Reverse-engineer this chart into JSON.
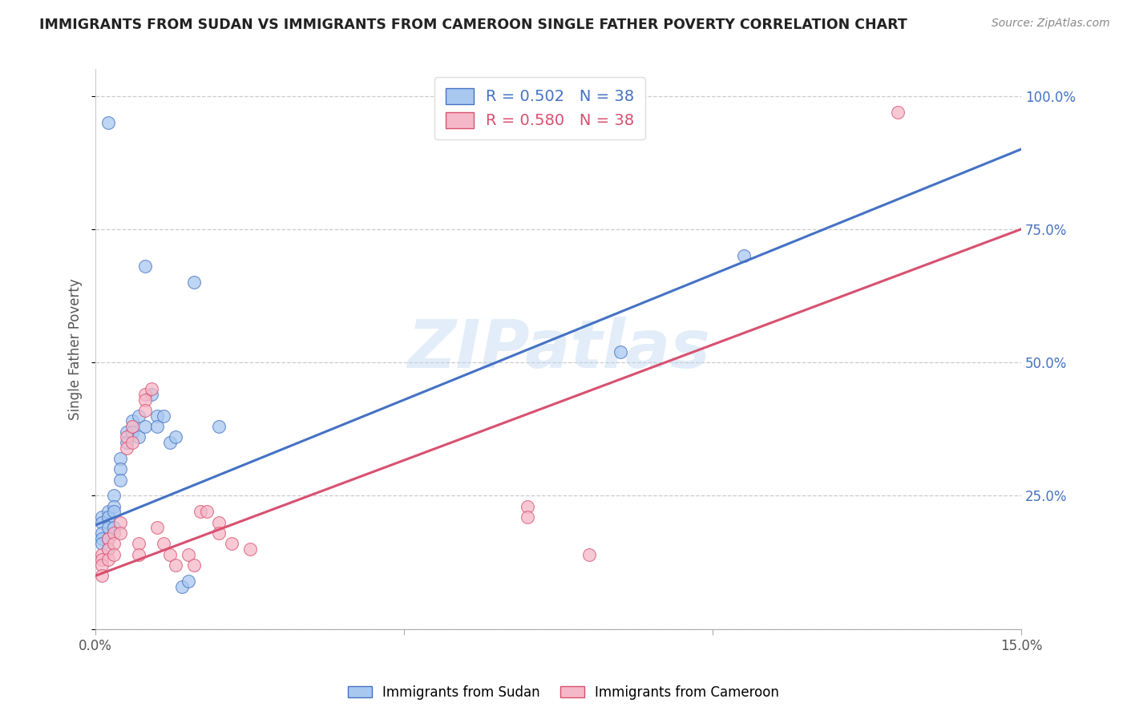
{
  "title": "IMMIGRANTS FROM SUDAN VS IMMIGRANTS FROM CAMEROON SINGLE FATHER POVERTY CORRELATION CHART",
  "source": "Source: ZipAtlas.com",
  "ylabel": "Single Father Poverty",
  "xlim": [
    0.0,
    0.15
  ],
  "ylim": [
    0.0,
    1.05
  ],
  "yticks": [
    0.0,
    0.25,
    0.5,
    0.75,
    1.0
  ],
  "yticklabels": [
    "",
    "25.0%",
    "50.0%",
    "75.0%",
    "100.0%"
  ],
  "sudan_color": "#a8c8f0",
  "cameroon_color": "#f5b8c8",
  "trend_sudan_color": "#4472c4",
  "trend_cameroon_color": "#d85070",
  "legend_text_sudan": "R = 0.502   N = 38",
  "legend_text_cameroon": "R = 0.580   N = 38",
  "legend_label_sudan": "Immigrants from Sudan",
  "legend_label_cameroon": "Immigrants from Cameroon",
  "watermark": "ZIPatlas",
  "sudan_x": [
    0.002,
    0.008,
    0.001,
    0.001,
    0.001,
    0.001,
    0.001,
    0.002,
    0.002,
    0.002,
    0.002,
    0.002,
    0.003,
    0.003,
    0.003,
    0.003,
    0.004,
    0.004,
    0.004,
    0.005,
    0.005,
    0.006,
    0.006,
    0.007,
    0.007,
    0.008,
    0.009,
    0.01,
    0.01,
    0.011,
    0.012,
    0.013,
    0.014,
    0.015,
    0.016,
    0.02,
    0.085,
    0.105
  ],
  "sudan_y": [
    0.95,
    0.68,
    0.21,
    0.2,
    0.18,
    0.17,
    0.16,
    0.22,
    0.21,
    0.19,
    0.17,
    0.15,
    0.25,
    0.23,
    0.22,
    0.19,
    0.32,
    0.3,
    0.28,
    0.37,
    0.35,
    0.39,
    0.37,
    0.4,
    0.36,
    0.38,
    0.44,
    0.4,
    0.38,
    0.4,
    0.35,
    0.36,
    0.08,
    0.09,
    0.65,
    0.38,
    0.52,
    0.7
  ],
  "cameroon_x": [
    0.13,
    0.001,
    0.001,
    0.001,
    0.001,
    0.002,
    0.002,
    0.002,
    0.003,
    0.003,
    0.003,
    0.004,
    0.004,
    0.005,
    0.005,
    0.006,
    0.006,
    0.007,
    0.007,
    0.008,
    0.008,
    0.008,
    0.009,
    0.01,
    0.011,
    0.012,
    0.013,
    0.015,
    0.016,
    0.017,
    0.018,
    0.02,
    0.02,
    0.022,
    0.025,
    0.07,
    0.07,
    0.08
  ],
  "cameroon_y": [
    0.97,
    0.14,
    0.13,
    0.12,
    0.1,
    0.17,
    0.15,
    0.13,
    0.18,
    0.16,
    0.14,
    0.2,
    0.18,
    0.36,
    0.34,
    0.38,
    0.35,
    0.16,
    0.14,
    0.44,
    0.43,
    0.41,
    0.45,
    0.19,
    0.16,
    0.14,
    0.12,
    0.14,
    0.12,
    0.22,
    0.22,
    0.2,
    0.18,
    0.16,
    0.15,
    0.23,
    0.21,
    0.14
  ]
}
